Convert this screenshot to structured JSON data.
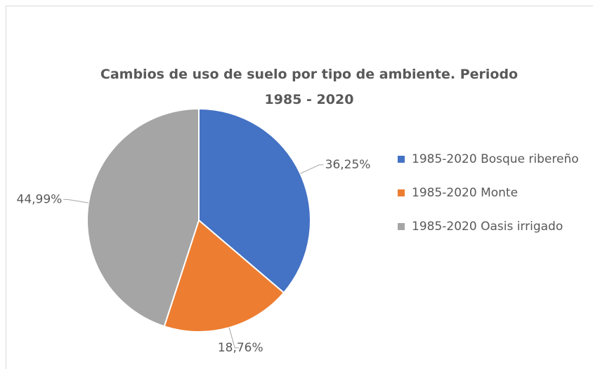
{
  "chart_data": {
    "type": "pie",
    "title": "Cambios de uso de suelo por tipo de ambiente. Periodo 1985 - 2020",
    "categories": [
      "1985-2020 Bosque ribereño",
      "1985-2020 Monte",
      "1985-2020 Oasis irrigado"
    ],
    "values": [
      36.25,
      18.76,
      44.99
    ],
    "value_labels": [
      "36,25%",
      "18,76%",
      "44,99%"
    ],
    "colors": [
      "#4472c4",
      "#ed7d31",
      "#a5a5a5"
    ],
    "legend": "right"
  }
}
